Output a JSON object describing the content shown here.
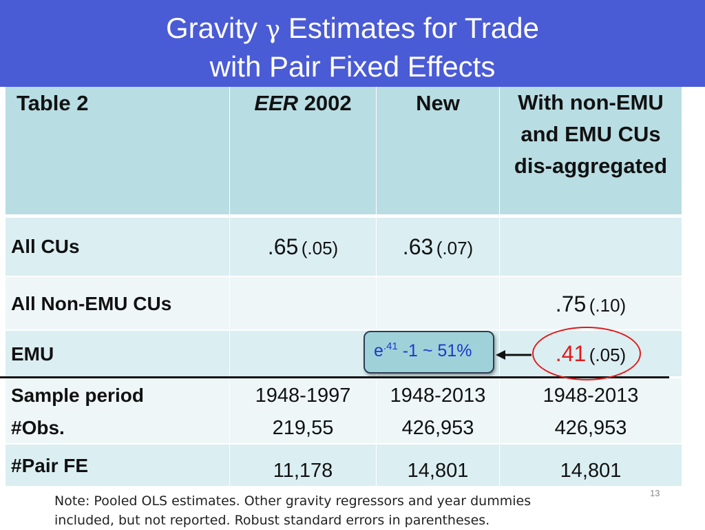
{
  "title": {
    "line1_pre": "Gravity ",
    "gamma": "γ",
    "line1_post": " Estimates for Trade",
    "line2": "with Pair Fixed Effects"
  },
  "table": {
    "header": {
      "col0": "Table 2",
      "col1_italic": "EER",
      "col1_rest": " 2002",
      "col2": "New",
      "col3_line1": "With non-EMU",
      "col3_line2": "and EMU CUs",
      "col3_line3": "dis-aggregated"
    },
    "rows": {
      "all_cus": {
        "label": "All CUs",
        "c1_est": ".65",
        "c1_se": "(.05)",
        "c2_est": ".63",
        "c2_se": "(.07)"
      },
      "non_emu": {
        "label": "All Non-EMU CUs",
        "c3_est": ".75",
        "c3_se": "(.10)"
      },
      "emu": {
        "label": "EMU",
        "c3_est": ".41",
        "c3_se": "(.05)"
      },
      "sample": {
        "label": "Sample period",
        "c1": "1948-1997",
        "c2": "1948-2013",
        "c3": "1948-2013"
      },
      "obs": {
        "label": "#Obs.",
        "c1": "219,55",
        "c2": "426,953",
        "c3": "426,953"
      },
      "pair_fe": {
        "label": "#Pair FE",
        "c1": "11,178",
        "c2": "14,801",
        "c3": "14,801"
      }
    }
  },
  "callout": {
    "base": "e",
    "exp": ".41",
    "rest": " -1 ~ 51%"
  },
  "note": {
    "line1": "Note: Pooled OLS estimates. Other gravity regressors and year dummies",
    "line2": "included, but not reported. Robust standard errors in parentheses."
  },
  "page_number": "13",
  "colors": {
    "title_bar": "#4a5bd6",
    "header_fill": "#b8dde3",
    "highlight": "#e01b1b",
    "callout_text": "#1a3acb"
  }
}
